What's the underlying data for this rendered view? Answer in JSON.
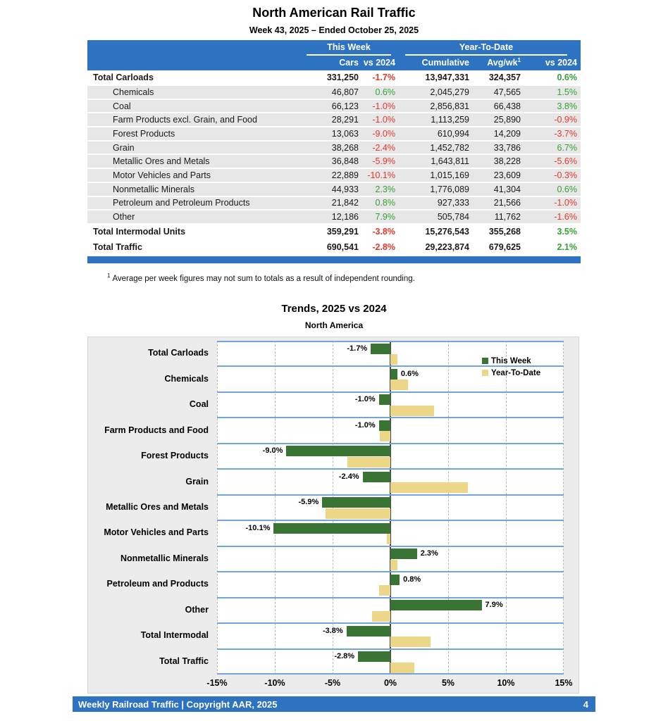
{
  "page": {
    "title": "North American Rail Traffic",
    "subtitle": "Week 43, 2025 – Ended October 25, 2025"
  },
  "table": {
    "group_headers": {
      "this_week": "This Week",
      "ytd": "Year-To-Date"
    },
    "col_headers": {
      "cars": "Cars",
      "week_vs": "vs 2024",
      "cumulative": "Cumulative",
      "avg_wk": "Avg/wk",
      "avg_wk_sup": "1",
      "ytd_vs": "vs 2024"
    },
    "rows": [
      {
        "label": "Total Carloads",
        "cars": "331,250",
        "week_pct": "-1.7%",
        "cumulative": "13,947,331",
        "avg_wk": "324,357",
        "ytd_pct": "0.6%",
        "total": true
      },
      {
        "label": "Chemicals",
        "cars": "46,807",
        "week_pct": "0.6%",
        "cumulative": "2,045,279",
        "avg_wk": "47,565",
        "ytd_pct": "1.5%",
        "total": false
      },
      {
        "label": "Coal",
        "cars": "66,123",
        "week_pct": "-1.0%",
        "cumulative": "2,856,831",
        "avg_wk": "66,438",
        "ytd_pct": "3.8%",
        "total": false
      },
      {
        "label": "Farm Products excl. Grain, and Food",
        "cars": "28,291",
        "week_pct": "-1.0%",
        "cumulative": "1,113,259",
        "avg_wk": "25,890",
        "ytd_pct": "-0.9%",
        "total": false
      },
      {
        "label": "Forest Products",
        "cars": "13,063",
        "week_pct": "-9.0%",
        "cumulative": "610,994",
        "avg_wk": "14,209",
        "ytd_pct": "-3.7%",
        "total": false
      },
      {
        "label": "Grain",
        "cars": "38,268",
        "week_pct": "-2.4%",
        "cumulative": "1,452,782",
        "avg_wk": "33,786",
        "ytd_pct": "6.7%",
        "total": false
      },
      {
        "label": "Metallic Ores and Metals",
        "cars": "36,848",
        "week_pct": "-5.9%",
        "cumulative": "1,643,811",
        "avg_wk": "38,228",
        "ytd_pct": "-5.6%",
        "total": false
      },
      {
        "label": "Motor Vehicles and Parts",
        "cars": "22,889",
        "week_pct": "-10.1%",
        "cumulative": "1,015,169",
        "avg_wk": "23,609",
        "ytd_pct": "-0.3%",
        "total": false
      },
      {
        "label": "Nonmetallic Minerals",
        "cars": "44,933",
        "week_pct": "2.3%",
        "cumulative": "1,776,089",
        "avg_wk": "41,304",
        "ytd_pct": "0.6%",
        "total": false
      },
      {
        "label": "Petroleum and Petroleum Products",
        "cars": "21,842",
        "week_pct": "0.8%",
        "cumulative": "927,333",
        "avg_wk": "21,566",
        "ytd_pct": "-1.0%",
        "total": false
      },
      {
        "label": "Other",
        "cars": "12,186",
        "week_pct": "7.9%",
        "cumulative": "505,784",
        "avg_wk": "11,762",
        "ytd_pct": "-1.6%",
        "total": false
      },
      {
        "label": "Total Intermodal Units",
        "cars": "359,291",
        "week_pct": "-3.8%",
        "cumulative": "15,276,543",
        "avg_wk": "355,268",
        "ytd_pct": "3.5%",
        "total": true
      },
      {
        "label": "Total Traffic",
        "cars": "690,541",
        "week_pct": "-2.8%",
        "cumulative": "29,223,874",
        "avg_wk": "679,625",
        "ytd_pct": "2.1%",
        "total": true
      }
    ]
  },
  "footnote": {
    "sup": "1",
    "text": "Average per week figures may not sum to totals as a result of independent rounding."
  },
  "chart_data": {
    "type": "bar",
    "orientation": "horizontal",
    "title": "Trends, 2025 vs 2024",
    "subtitle": "North America",
    "categories": [
      "Total Carloads",
      "Chemicals",
      "Coal",
      "Farm Products and Food",
      "Forest Products",
      "Grain",
      "Metallic Ores and Metals",
      "Motor Vehicles and Parts",
      "Nonmetallic Minerals",
      "Petroleum and Products",
      "Other",
      "Total Intermodal",
      "Total Traffic"
    ],
    "series": [
      {
        "name": "This Week",
        "color": "#3A7434",
        "values": [
          -1.7,
          0.6,
          -1.0,
          -1.0,
          -9.0,
          -2.4,
          -5.9,
          -10.1,
          2.3,
          0.8,
          7.9,
          -3.8,
          -2.8
        ],
        "labels_shown": true
      },
      {
        "name": "Year-To-Date",
        "color": "#ECD687",
        "values": [
          0.6,
          1.5,
          3.8,
          -0.9,
          -3.7,
          6.7,
          -5.6,
          -0.3,
          0.6,
          -1.0,
          -1.6,
          3.5,
          2.1
        ],
        "labels_shown": false
      }
    ],
    "xlim": [
      -15,
      15
    ],
    "x_ticks": [
      "-15%",
      "-10%",
      "-5%",
      "0%",
      "5%",
      "10%",
      "15%"
    ],
    "x_tick_values": [
      -15,
      -10,
      -5,
      0,
      5,
      10,
      15
    ],
    "legend_position": "top-right",
    "grid": "vertical-dashed"
  },
  "footer": {
    "text": "Weekly Railroad Traffic | Copyright AAR, 2025",
    "page": "4"
  },
  "colors": {
    "accent_blue": "#2E72C2",
    "band_separator_blue": "#74A5D8",
    "bar_green": "#3A7434",
    "bar_tan": "#ECD687",
    "positive_text": "#36A136",
    "negative_text": "#E8362A",
    "row_stripe_gray": "#E7E7E7",
    "chart_background": "#ECECEC"
  }
}
